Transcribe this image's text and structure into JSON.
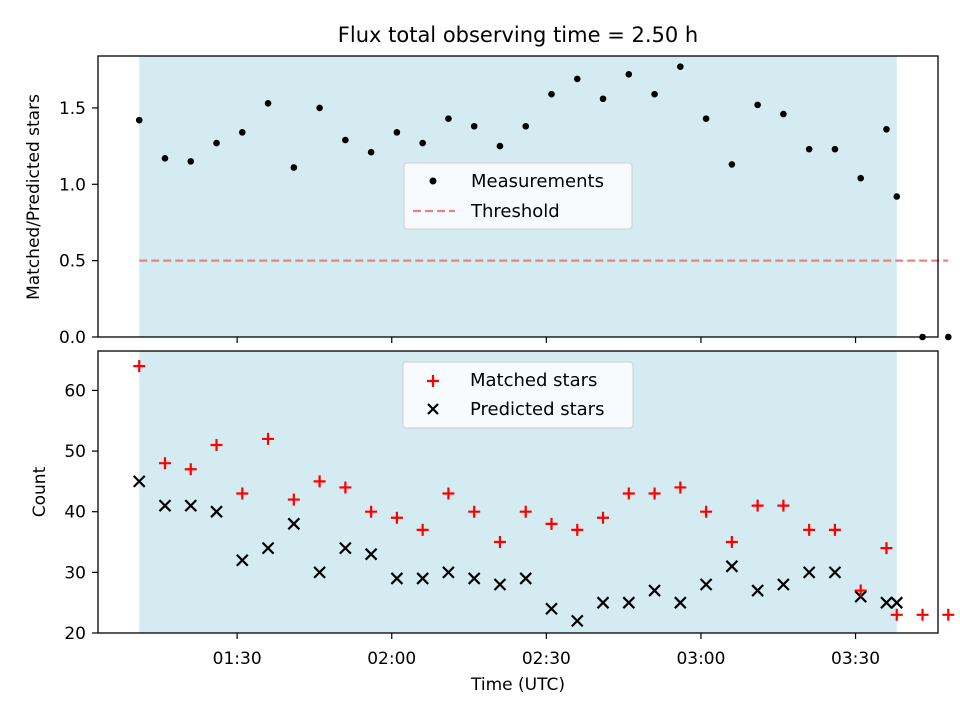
{
  "chart_data": [
    {
      "type": "scatter",
      "title": "Flux total observing time = 2.50 h",
      "xlabel": "",
      "ylabel": "Matched/Predicted stars",
      "ylim": [
        0,
        1.84
      ],
      "yticks": [
        0.0,
        0.5,
        1.0,
        1.5
      ],
      "ytick_labels": [
        "0.0",
        "0.5",
        "1.0",
        "1.5"
      ],
      "xlim": [
        "01:03",
        "03:46"
      ],
      "xticks": [
        "01:30",
        "02:00",
        "02:30",
        "03:00",
        "03:30"
      ],
      "shaded_span": [
        "01:11",
        "03:38"
      ],
      "shaded_color": "#add8e6",
      "grid": false,
      "legend_position": "center",
      "series": [
        {
          "name": "Measurements",
          "marker": "dot",
          "color": "#000000",
          "x": [
            "01:11",
            "01:16",
            "01:21",
            "01:26",
            "01:31",
            "01:36",
            "01:41",
            "01:46",
            "01:51",
            "01:56",
            "02:01",
            "02:06",
            "02:11",
            "02:16",
            "02:21",
            "02:26",
            "02:31",
            "02:36",
            "02:41",
            "02:46",
            "02:51",
            "02:56",
            "03:01",
            "03:06",
            "03:11",
            "03:16",
            "03:21",
            "03:26",
            "03:31",
            "03:36",
            "03:38",
            "03:43",
            "03:48"
          ],
          "y": [
            1.42,
            1.17,
            1.15,
            1.27,
            1.34,
            1.53,
            1.11,
            1.5,
            1.29,
            1.21,
            1.34,
            1.27,
            1.43,
            1.38,
            1.25,
            1.38,
            1.59,
            1.69,
            1.56,
            1.72,
            1.59,
            1.77,
            1.43,
            1.13,
            1.52,
            1.46,
            1.23,
            1.23,
            1.04,
            1.36,
            0.92,
            0.0,
            0.0
          ]
        },
        {
          "name": "Threshold",
          "style": "dashed",
          "color": "#f08080",
          "x": [
            "01:11",
            "03:48"
          ],
          "y": [
            0.5,
            0.5
          ]
        }
      ]
    },
    {
      "type": "scatter",
      "title": "",
      "xlabel": "Time (UTC)",
      "ylabel": "Count",
      "ylim": [
        20,
        66.5
      ],
      "yticks": [
        20,
        30,
        40,
        50,
        60
      ],
      "ytick_labels": [
        "20",
        "30",
        "40",
        "50",
        "60"
      ],
      "xlim": [
        "01:03",
        "03:46"
      ],
      "xticks": [
        "01:30",
        "02:00",
        "02:30",
        "03:00",
        "03:30"
      ],
      "xtick_labels": [
        "01:30",
        "02:00",
        "02:30",
        "03:00",
        "03:30"
      ],
      "shaded_span": [
        "01:11",
        "03:38"
      ],
      "shaded_color": "#add8e6",
      "grid": false,
      "legend_position": "top-center",
      "series": [
        {
          "name": "Matched stars",
          "marker": "plus",
          "color": "#ff0000",
          "x": [
            "01:11",
            "01:16",
            "01:21",
            "01:26",
            "01:31",
            "01:36",
            "01:41",
            "01:46",
            "01:51",
            "01:56",
            "02:01",
            "02:06",
            "02:11",
            "02:16",
            "02:21",
            "02:26",
            "02:31",
            "02:36",
            "02:41",
            "02:46",
            "02:51",
            "02:56",
            "03:01",
            "03:06",
            "03:11",
            "03:16",
            "03:21",
            "03:26",
            "03:31",
            "03:36",
            "03:38",
            "03:43",
            "03:48"
          ],
          "y": [
            64,
            48,
            47,
            51,
            43,
            52,
            42,
            45,
            44,
            40,
            39,
            37,
            43,
            40,
            35,
            40,
            38,
            37,
            39,
            43,
            43,
            44,
            40,
            35,
            41,
            41,
            37,
            37,
            27,
            34,
            23,
            23,
            23
          ]
        },
        {
          "name": "Predicted stars",
          "marker": "x",
          "color": "#000000",
          "x": [
            "01:11",
            "01:16",
            "01:21",
            "01:26",
            "01:31",
            "01:36",
            "01:41",
            "01:46",
            "01:51",
            "01:56",
            "02:01",
            "02:06",
            "02:11",
            "02:16",
            "02:21",
            "02:26",
            "02:31",
            "02:36",
            "02:41",
            "02:46",
            "02:51",
            "02:56",
            "03:01",
            "03:06",
            "03:11",
            "03:16",
            "03:21",
            "03:26",
            "03:31",
            "03:36",
            "03:38"
          ],
          "y": [
            45,
            41,
            41,
            40,
            32,
            34,
            38,
            30,
            34,
            33,
            29,
            29,
            30,
            29,
            28,
            29,
            24,
            22,
            25,
            25,
            27,
            25,
            28,
            31,
            27,
            28,
            30,
            30,
            26,
            25,
            25
          ]
        }
      ]
    }
  ]
}
